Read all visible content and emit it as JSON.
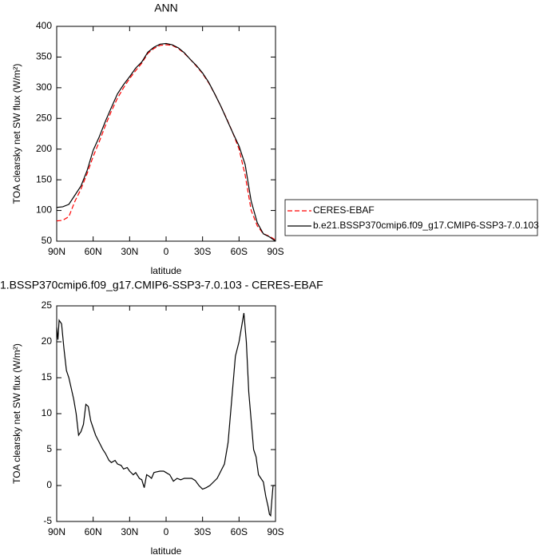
{
  "chart_data": [
    {
      "type": "line",
      "title": "ANN",
      "xlabel": "latitude",
      "ylabel": "TOA clearsky net SW flux (W/m²)",
      "xlim": [
        90,
        -90
      ],
      "xticks": [
        {
          "value": 90,
          "label": "90N"
        },
        {
          "value": 60,
          "label": "60N"
        },
        {
          "value": 30,
          "label": "30N"
        },
        0,
        {
          "value": -30,
          "label": "30S"
        },
        {
          "value": -60,
          "label": "60S"
        },
        {
          "value": -90,
          "label": "90S"
        }
      ],
      "ylim": [
        50,
        400
      ],
      "yticks": [
        50,
        100,
        150,
        200,
        250,
        300,
        350,
        400
      ],
      "legend": "right",
      "x": [
        90,
        85,
        80,
        75,
        70,
        65,
        60,
        55,
        50,
        45,
        40,
        35,
        30,
        25,
        20,
        15,
        10,
        5,
        0,
        -5,
        -10,
        -15,
        -20,
        -25,
        -30,
        -35,
        -40,
        -45,
        -50,
        -55,
        -60,
        -65,
        -70,
        -75,
        -80,
        -85,
        -90
      ],
      "series": [
        {
          "name": "CERES-EBAF",
          "color": "#ff0000",
          "dashed": true,
          "values": [
            83,
            84,
            90,
            115,
            135,
            160,
            188,
            212,
            238,
            262,
            283,
            300,
            315,
            328,
            340,
            356,
            364,
            369,
            370,
            369,
            364,
            356,
            346,
            335,
            323,
            308,
            290,
            270,
            249,
            226,
            200,
            158,
            100,
            75,
            62,
            58,
            52
          ]
        },
        {
          "name": "b.e21.BSSP370cmip6.f09_g17.CMIP6-SSP3-7.0.103",
          "color": "#000000",
          "dashed": false,
          "values": [
            105,
            106,
            110,
            125,
            140,
            165,
            198,
            220,
            245,
            268,
            290,
            305,
            318,
            332,
            342,
            358,
            366,
            371,
            372,
            370,
            365,
            357,
            346,
            336,
            324,
            309,
            290,
            270,
            248,
            226,
            205,
            175,
            115,
            80,
            62,
            57,
            50
          ]
        }
      ]
    },
    {
      "type": "line",
      "title": "1.BSSP370cmip6.f09_g17.CMIP6-SSP3-7.0.103 - CERES-EBAF",
      "xlabel": "latitude",
      "ylabel": "TOA clearsky net SW flux (W/m²)",
      "xlim": [
        90,
        -90
      ],
      "xticks": [
        {
          "value": 90,
          "label": "90N"
        },
        {
          "value": 60,
          "label": "60N"
        },
        {
          "value": 30,
          "label": "30N"
        },
        0,
        {
          "value": -30,
          "label": "30S"
        },
        {
          "value": -60,
          "label": "60S"
        },
        {
          "value": -90,
          "label": "90S"
        }
      ],
      "ylim": [
        -5,
        25
      ],
      "yticks": [
        -5,
        0,
        5,
        10,
        15,
        20,
        25
      ],
      "x": [
        90,
        89,
        88,
        86,
        84,
        82,
        80,
        78,
        76,
        74,
        72,
        70,
        68,
        66,
        64,
        62,
        60,
        58,
        55,
        52,
        50,
        47,
        45,
        42,
        40,
        37,
        35,
        32,
        30,
        27,
        25,
        22,
        20,
        18,
        16,
        14,
        12,
        10,
        8,
        5,
        2,
        0,
        -3,
        -6,
        -9,
        -12,
        -15,
        -18,
        -21,
        -24,
        -27,
        -30,
        -33,
        -36,
        -39,
        -42,
        -45,
        -48,
        -51,
        -54,
        -57,
        -60,
        -62,
        -64,
        -66,
        -68,
        -70,
        -72,
        -74,
        -76,
        -78,
        -80,
        -82,
        -84,
        -85,
        -86,
        -87,
        -88,
        -90
      ],
      "series": [
        {
          "name": null,
          "color": "#000000",
          "dashed": false,
          "values": [
            22,
            20.3,
            23,
            22.5,
            19,
            16,
            15,
            13.5,
            12,
            10,
            7,
            7.5,
            8.5,
            11.3,
            11,
            9,
            8,
            7,
            6,
            5,
            4.5,
            3.5,
            3.2,
            3.5,
            3,
            2.8,
            2.3,
            2.5,
            2,
            1.5,
            1.8,
            1,
            0.8,
            -0.3,
            1.5,
            1.3,
            1,
            1.8,
            1.9,
            2,
            2,
            1.8,
            1.5,
            0.6,
            1,
            0.8,
            1,
            1,
            1,
            0.7,
            0,
            -0.5,
            -0.3,
            0,
            0.5,
            1,
            2,
            3,
            6,
            12,
            18,
            20,
            22,
            24,
            20,
            13,
            9,
            5,
            4,
            1.5,
            1,
            0.5,
            -1.5,
            -3,
            -4,
            -4.2,
            -2,
            0,
            0
          ]
        }
      ]
    }
  ]
}
